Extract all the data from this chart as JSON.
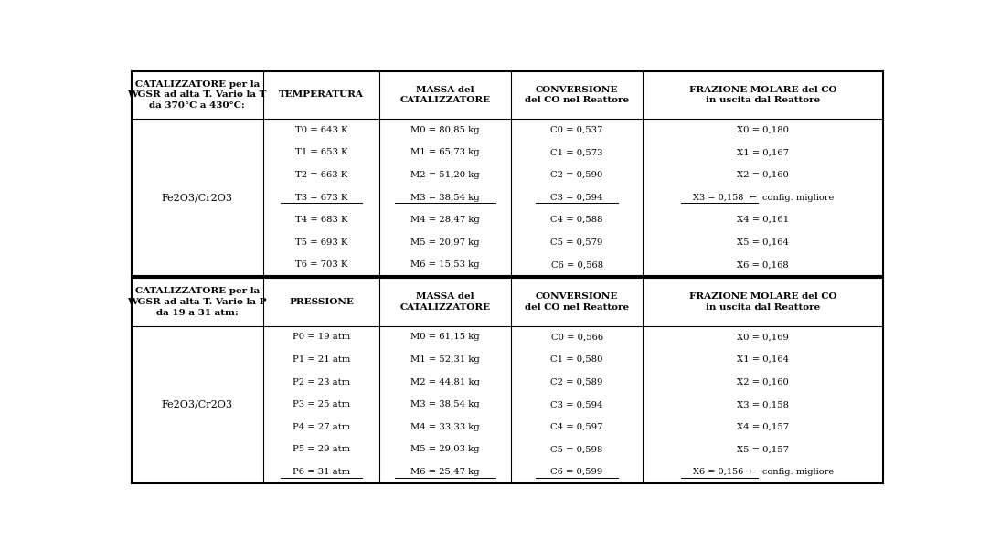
{
  "figsize": [
    10.83,
    5.91
  ],
  "dpi": 100,
  "background_color": "#ffffff",
  "col_props": [
    0.175,
    0.155,
    0.175,
    0.175,
    0.32
  ],
  "sections": [
    {
      "header_row": [
        "CATALIZZATORE per la\nWGSR ad alta T. Vario la T\nda 370°C a 430°C:",
        "TEMPERATURA",
        "MASSA del\nCATALIZZATORE",
        "CONVERSIONE\ndel CO nel Reattore",
        "FRAZIONE MOLARE del CO\nin uscita dal Reattore"
      ],
      "catalyst": "Fe2O3/Cr2O3",
      "col2": [
        "T0 = 643 K",
        "T1 = 653 K",
        "T2 = 663 K",
        "T3 = 673 K",
        "T4 = 683 K",
        "T5 = 693 K",
        "T6 = 703 K"
      ],
      "col3": [
        "M0 = 80,85 kg",
        "M1 = 65,73 kg",
        "M2 = 51,20 kg",
        "M3 = 38,54 kg",
        "M4 = 28,47 kg",
        "M5 = 20,97 kg",
        "M6 = 15,53 kg"
      ],
      "col4": [
        "C0 = 0,537",
        "C1 = 0,573",
        "C2 = 0,590",
        "C3 = 0,594",
        "C4 = 0,588",
        "C5 = 0,579",
        "C6 = 0,568"
      ],
      "col5": [
        "X0 = 0,180",
        "X1 = 0,167",
        "X2 = 0,160",
        "X3 = 0,158  ←  config. migliore",
        "X4 = 0,161",
        "X5 = 0,164",
        "X6 = 0,168"
      ],
      "col5_underline_part": [
        "",
        "",
        "",
        "X3 = 0,158",
        "",
        "",
        ""
      ],
      "underline_row": 3
    },
    {
      "header_row": [
        "CATALIZZATORE per la\nWGSR ad alta T. Vario la P\nda 19 a 31 atm:",
        "PRESSIONE",
        "MASSA del\nCATALIZZATORE",
        "CONVERSIONE\ndel CO nel Reattore",
        "FRAZIONE MOLARE del CO\nin uscita dal Reattore"
      ],
      "catalyst": "Fe2O3/Cr2O3",
      "col2": [
        "P0 = 19 atm",
        "P1 = 21 atm",
        "P2 = 23 atm",
        "P3 = 25 atm",
        "P4 = 27 atm",
        "P5 = 29 atm",
        "P6 = 31 atm"
      ],
      "col3": [
        "M0 = 61,15 kg",
        "M1 = 52,31 kg",
        "M2 = 44,81 kg",
        "M3 = 38,54 kg",
        "M4 = 33,33 kg",
        "M5 = 29,03 kg",
        "M6 = 25,47 kg"
      ],
      "col4": [
        "C0 = 0,566",
        "C1 = 0,580",
        "C2 = 0,589",
        "C3 = 0,594",
        "C4 = 0,597",
        "C5 = 0,598",
        "C6 = 0,599"
      ],
      "col5": [
        "X0 = 0,169",
        "X1 = 0,164",
        "X2 = 0,160",
        "X3 = 0,158",
        "X4 = 0,157",
        "X5 = 0,157",
        "X6 = 0,156  ←  config. migliore"
      ],
      "col5_underline_part": [
        "",
        "",
        "",
        "",
        "",
        "",
        "X6 = 0,156"
      ],
      "underline_row": 6
    }
  ]
}
